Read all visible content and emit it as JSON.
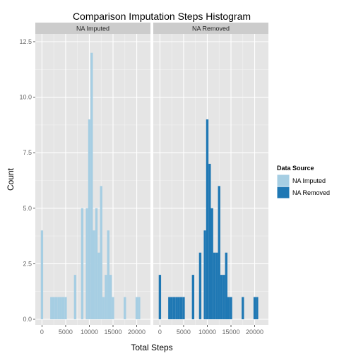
{
  "chart_data": {
    "type": "bar",
    "title": "Comparison Imputation Steps Histogram",
    "xlabel": "Total Steps",
    "ylabel": "Count",
    "xlim": [
      -1400,
      22900
    ],
    "ylim": [
      0,
      12.5
    ],
    "x_ticks": [
      0,
      5000,
      10000,
      15000,
      20000
    ],
    "x_tick_labels": [
      "0",
      "5000",
      "10000",
      "15000",
      "20000"
    ],
    "y_ticks": [
      0,
      2.5,
      5,
      7.5,
      10,
      12.5
    ],
    "y_tick_labels": [
      "0.0",
      "2.5",
      "5.0",
      "7.5",
      "10.0",
      "12.5"
    ],
    "grid": true,
    "legend": {
      "title": "Data Source",
      "placement": "right",
      "entries": [
        {
          "label": "NA Imputed",
          "color": "#a6cee3"
        },
        {
          "label": "NA Removed",
          "color": "#1f78b4"
        }
      ]
    },
    "bin_width": 500,
    "panels": [
      {
        "label": "NA Imputed",
        "color": "#a6cee3",
        "bins": [
          {
            "x": 0,
            "count": 4
          },
          {
            "x": 2000,
            "count": 1
          },
          {
            "x": 2500,
            "count": 1
          },
          {
            "x": 3000,
            "count": 1
          },
          {
            "x": 3500,
            "count": 1
          },
          {
            "x": 4000,
            "count": 1
          },
          {
            "x": 4500,
            "count": 1
          },
          {
            "x": 5000,
            "count": 1
          },
          {
            "x": 7000,
            "count": 2
          },
          {
            "x": 8500,
            "count": 5
          },
          {
            "x": 9500,
            "count": 5
          },
          {
            "x": 10000,
            "count": 9
          },
          {
            "x": 10500,
            "count": 12
          },
          {
            "x": 11000,
            "count": 4
          },
          {
            "x": 11500,
            "count": 5
          },
          {
            "x": 12000,
            "count": 3
          },
          {
            "x": 12500,
            "count": 6
          },
          {
            "x": 13000,
            "count": 1
          },
          {
            "x": 13500,
            "count": 2
          },
          {
            "x": 14000,
            "count": 4
          },
          {
            "x": 14500,
            "count": 2
          },
          {
            "x": 15000,
            "count": 1
          },
          {
            "x": 17500,
            "count": 1
          },
          {
            "x": 20000,
            "count": 1
          },
          {
            "x": 20500,
            "count": 1
          }
        ]
      },
      {
        "label": "NA Removed",
        "color": "#1f78b4",
        "bins": [
          {
            "x": 0,
            "count": 2
          },
          {
            "x": 2000,
            "count": 1
          },
          {
            "x": 2500,
            "count": 1
          },
          {
            "x": 3000,
            "count": 1
          },
          {
            "x": 3500,
            "count": 1
          },
          {
            "x": 4000,
            "count": 1
          },
          {
            "x": 4500,
            "count": 1
          },
          {
            "x": 5000,
            "count": 1
          },
          {
            "x": 7000,
            "count": 2
          },
          {
            "x": 8500,
            "count": 3
          },
          {
            "x": 9500,
            "count": 4
          },
          {
            "x": 10000,
            "count": 9
          },
          {
            "x": 10500,
            "count": 7
          },
          {
            "x": 11000,
            "count": 5
          },
          {
            "x": 11500,
            "count": 3
          },
          {
            "x": 12000,
            "count": 3
          },
          {
            "x": 12500,
            "count": 6
          },
          {
            "x": 13000,
            "count": 2
          },
          {
            "x": 13500,
            "count": 2
          },
          {
            "x": 14000,
            "count": 3
          },
          {
            "x": 14500,
            "count": 1
          },
          {
            "x": 15000,
            "count": 1
          },
          {
            "x": 17500,
            "count": 1
          },
          {
            "x": 20000,
            "count": 1
          },
          {
            "x": 20500,
            "count": 1
          }
        ]
      }
    ]
  }
}
